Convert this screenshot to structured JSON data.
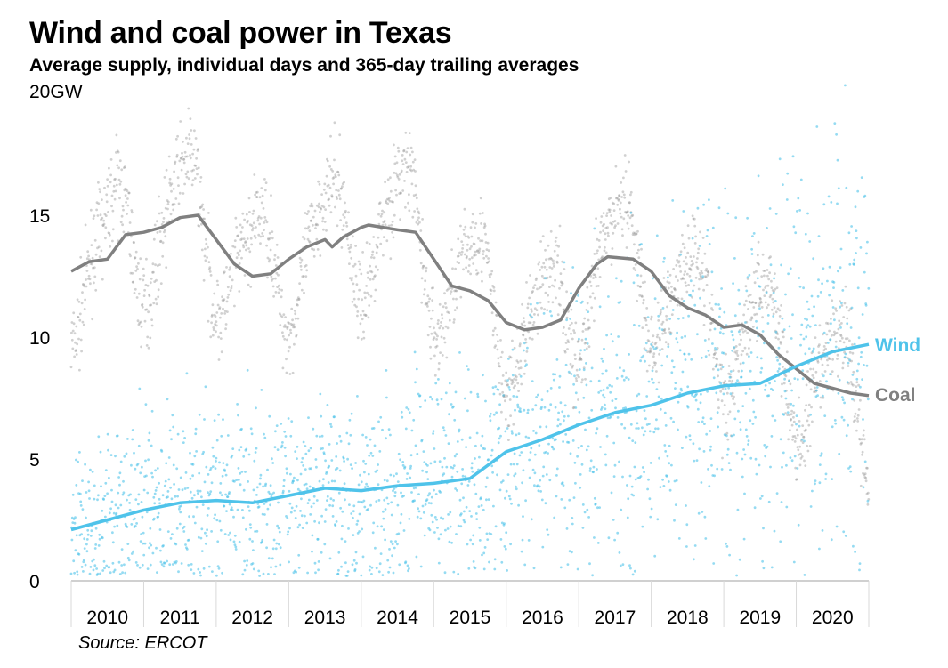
{
  "chart_data": {
    "type": "scatter",
    "title": "Wind and coal power in Texas",
    "subtitle": "Average supply, individual days and 365-day trailing averages",
    "ylabel": "20GW",
    "source": "Source: ERCOT",
    "xlim": [
      2010,
      2021
    ],
    "ylim": [
      0,
      20
    ],
    "y_ticks": [
      "0",
      "5",
      "10",
      "15"
    ],
    "x_ticks": [
      "2010",
      "2011",
      "2012",
      "2013",
      "2014",
      "2015",
      "2016",
      "2017",
      "2018",
      "2019",
      "2020"
    ],
    "grid": false,
    "legend": "inline-right",
    "series": [
      {
        "name": "Wind",
        "color": "#4fc3ea",
        "trailing_average": {
          "x": [
            2010.0,
            2010.5,
            2011.0,
            2011.5,
            2012.0,
            2012.5,
            2013.0,
            2013.5,
            2014.0,
            2014.5,
            2015.0,
            2015.5,
            2016.0,
            2016.5,
            2017.0,
            2017.5,
            2018.0,
            2018.5,
            2019.0,
            2019.5,
            2020.0,
            2020.5,
            2021.0
          ],
          "y": [
            2.1,
            2.5,
            2.9,
            3.2,
            3.3,
            3.2,
            3.5,
            3.8,
            3.7,
            3.9,
            4.0,
            4.2,
            5.3,
            5.8,
            6.4,
            6.9,
            7.2,
            7.7,
            8.0,
            8.1,
            8.8,
            9.4,
            9.7
          ]
        }
      },
      {
        "name": "Coal",
        "color": "#808080",
        "trailing_average": {
          "x": [
            2010.0,
            2010.25,
            2010.5,
            2010.75,
            2011.0,
            2011.25,
            2011.5,
            2011.75,
            2012.0,
            2012.25,
            2012.5,
            2012.75,
            2013.0,
            2013.25,
            2013.5,
            2013.6,
            2013.75,
            2014.0,
            2014.1,
            2014.5,
            2014.75,
            2015.0,
            2015.25,
            2015.5,
            2015.75,
            2016.0,
            2016.25,
            2016.5,
            2016.75,
            2017.0,
            2017.25,
            2017.4,
            2017.75,
            2018.0,
            2018.25,
            2018.5,
            2018.75,
            2019.0,
            2019.25,
            2019.5,
            2019.75,
            2020.0,
            2020.25,
            2020.5,
            2020.75,
            2021.0
          ],
          "y": [
            12.7,
            13.1,
            13.2,
            14.2,
            14.3,
            14.5,
            14.9,
            15.0,
            14.0,
            13.0,
            12.5,
            12.6,
            13.2,
            13.7,
            14.0,
            13.7,
            14.1,
            14.5,
            14.6,
            14.4,
            14.3,
            13.2,
            12.1,
            11.9,
            11.5,
            10.6,
            10.3,
            10.4,
            10.7,
            12.0,
            13.0,
            13.3,
            13.2,
            12.7,
            11.7,
            11.2,
            10.9,
            10.4,
            10.5,
            10.1,
            9.3,
            8.7,
            8.1,
            7.9,
            7.7,
            7.6
          ]
        }
      }
    ]
  }
}
